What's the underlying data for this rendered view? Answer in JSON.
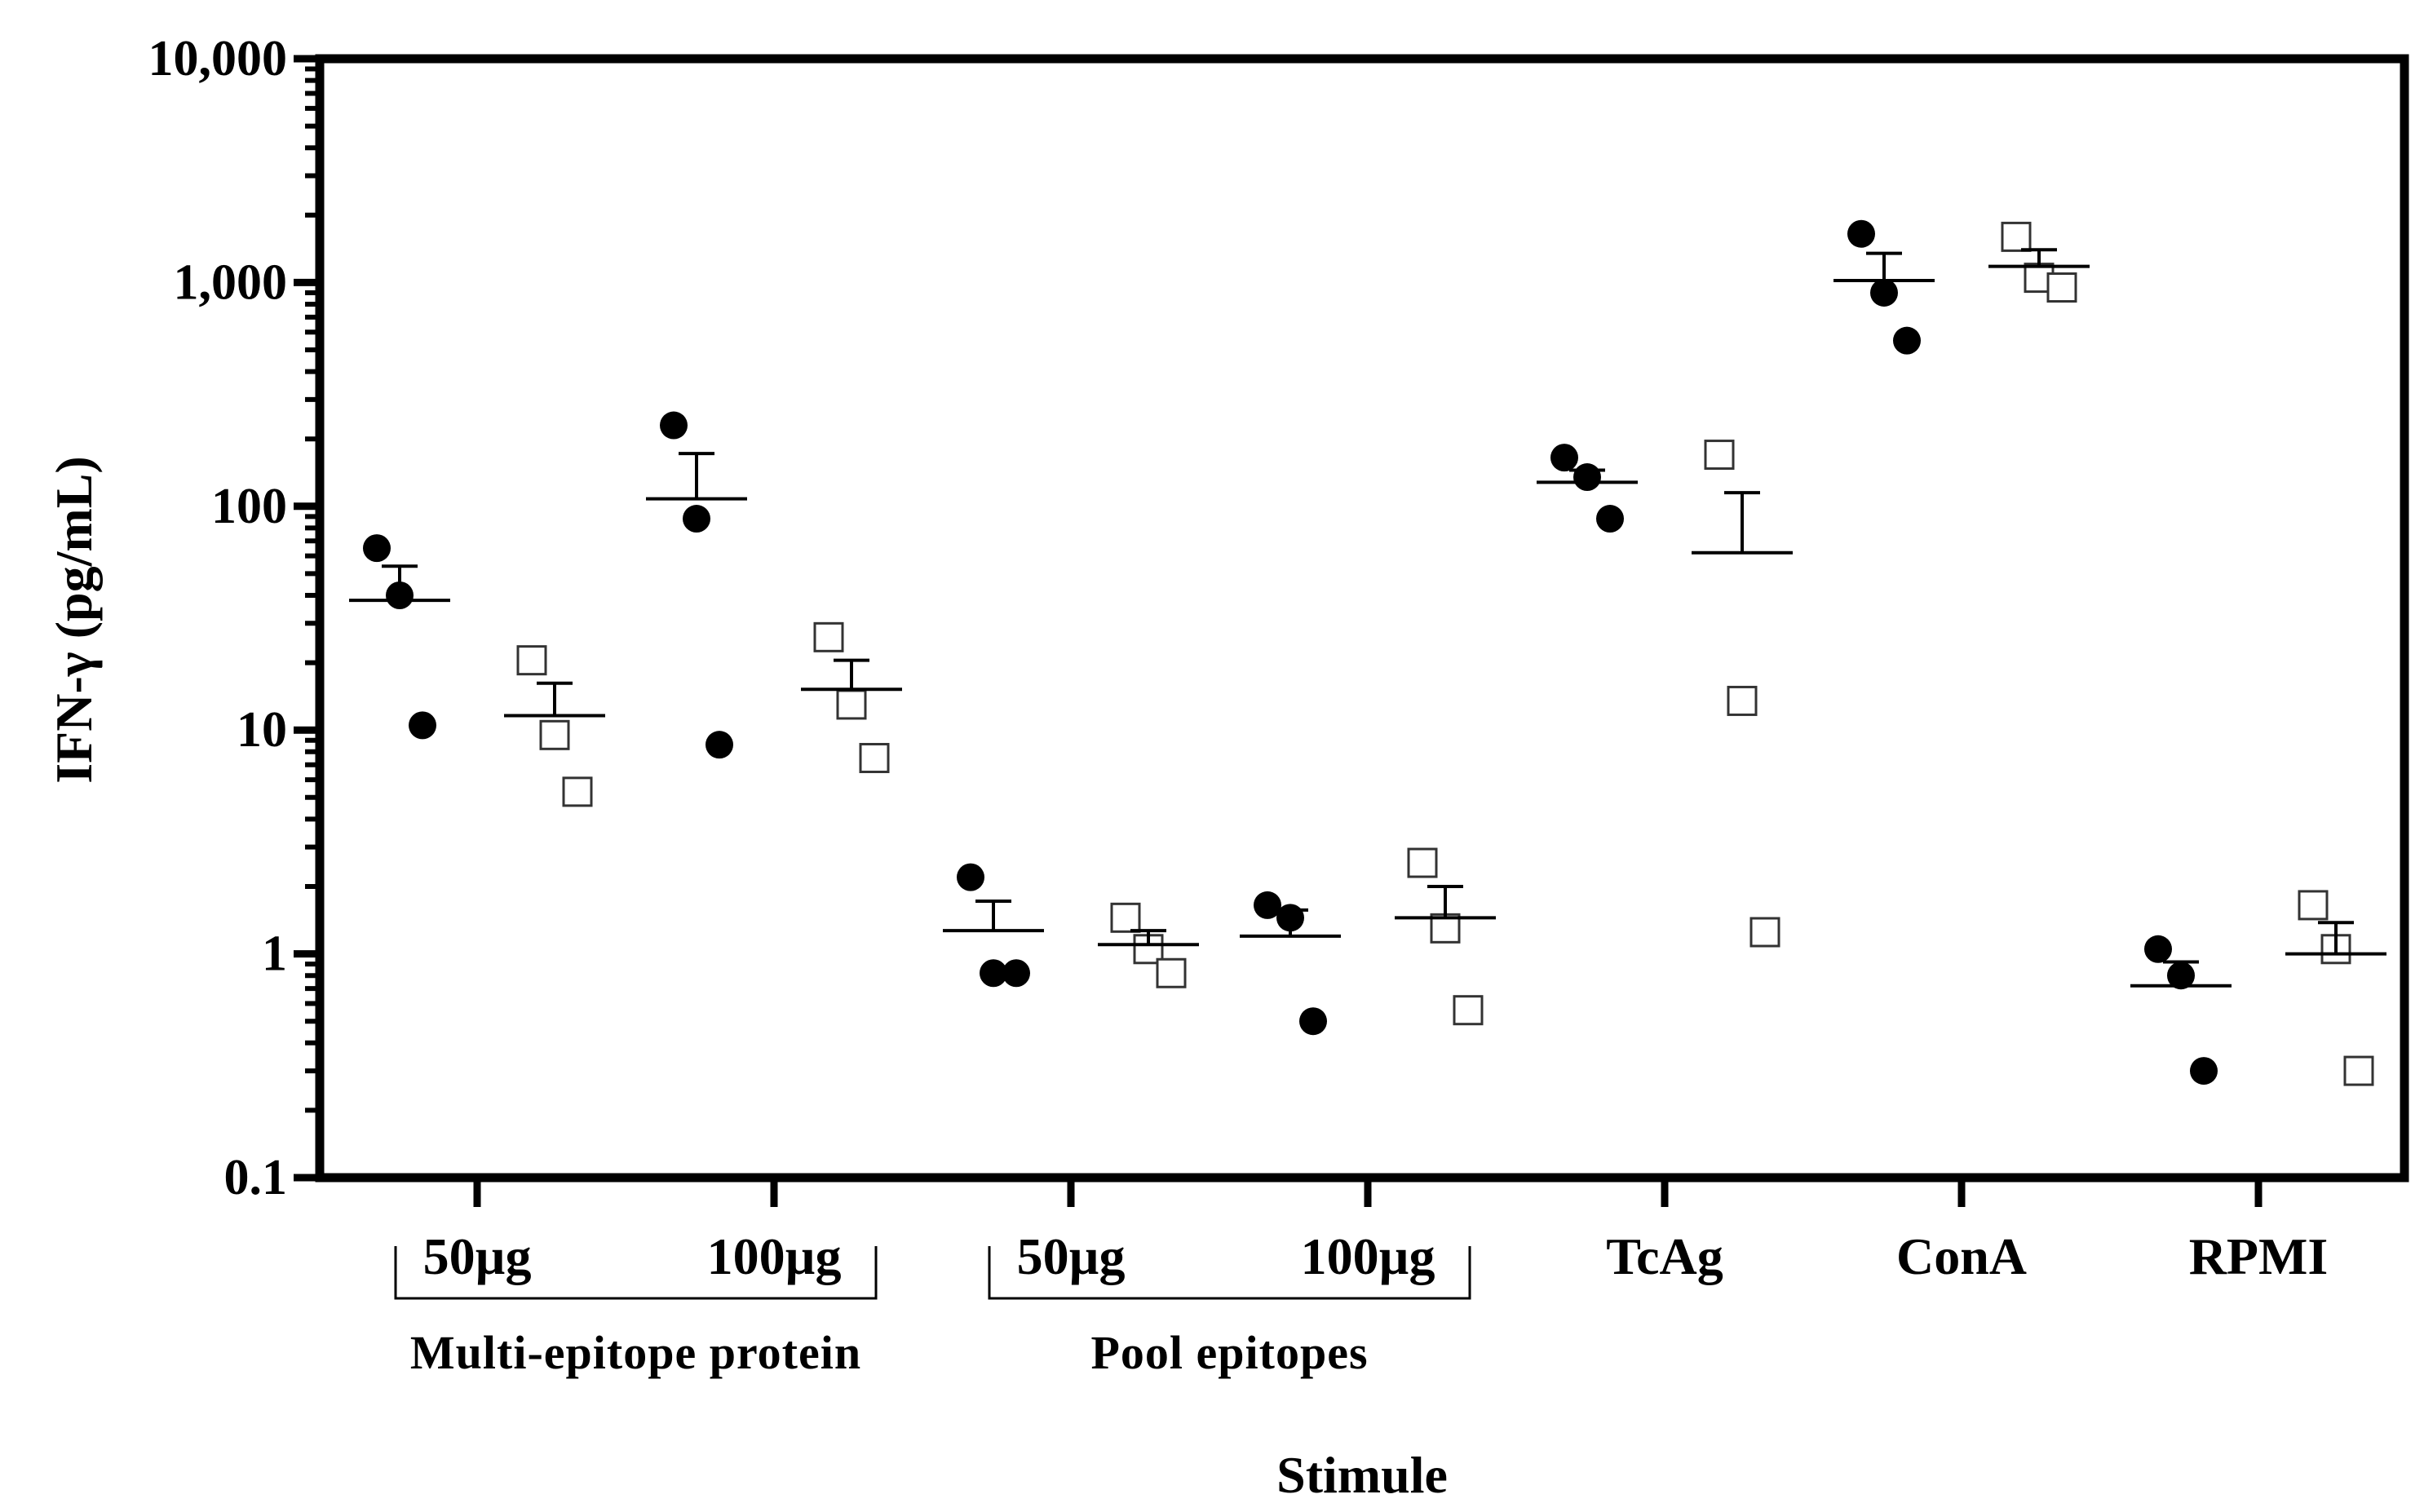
{
  "chart_data": {
    "type": "scatter",
    "title": "",
    "xlabel": "Stimule",
    "ylabel": "IFN-γ (pg/mL)",
    "yscale": "log",
    "ylim": [
      0.1,
      10000
    ],
    "yticks": [
      0.1,
      1,
      10,
      100,
      1000,
      10000
    ],
    "ytick_labels": [
      "0.1",
      "1",
      "10",
      "100",
      "1,000",
      "10,000"
    ],
    "categories": [
      "50µg",
      "100µg",
      "50µg",
      "100µg",
      "TcAg",
      "ConA",
      "RPMI"
    ],
    "category_groups": [
      {
        "label": "Multi-epitope protein",
        "spans": [
          0,
          1
        ]
      },
      {
        "label": "Pool epitopes",
        "spans": [
          2,
          3
        ]
      }
    ],
    "series": [
      {
        "name": "filled-circle",
        "marker": "filled-circle",
        "color": "#000000",
        "points": [
          [
            65,
            40,
            10.5
          ],
          [
            230,
            88,
            8.6
          ],
          [
            2.2,
            0.82,
            0.82
          ],
          [
            1.65,
            1.45,
            0.5
          ],
          [
            165,
            135,
            88
          ],
          [
            1650,
            900,
            550
          ],
          [
            1.05,
            0.8,
            0.3
          ]
        ],
        "means": [
          38,
          108,
          1.27,
          1.2,
          128,
          1020,
          0.72
        ],
        "sem_upper": [
          54,
          172,
          1.72,
          1.57,
          145,
          1350,
          0.92
        ]
      },
      {
        "name": "open-square",
        "marker": "open-square",
        "color": "#333333",
        "points": [
          [
            20.5,
            9.5,
            5.3
          ],
          [
            26,
            13,
            7.5
          ],
          [
            1.45,
            1.05,
            0.82
          ],
          [
            2.55,
            1.3,
            0.56
          ],
          [
            170,
            13.5,
            1.25
          ],
          [
            1600,
            1050,
            950
          ],
          [
            1.65,
            1.05,
            0.3
          ]
        ],
        "means": [
          11.6,
          15.2,
          1.1,
          1.45,
          62,
          1180,
          1.0
        ],
        "sem_upper": [
          16.2,
          20.5,
          1.27,
          2.0,
          115,
          1400,
          1.38
        ]
      }
    ]
  }
}
